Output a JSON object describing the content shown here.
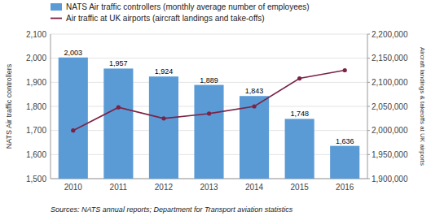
{
  "chart_data": {
    "type": "bar",
    "categories": [
      "2010",
      "2011",
      "2012",
      "2013",
      "2014",
      "2015",
      "2016"
    ],
    "series": [
      {
        "name": "NATS Air traffic controllers (monthly average number of employees)",
        "type": "bar",
        "color": "#5b9bd5",
        "values": [
          2003,
          1957,
          1924,
          1889,
          1843,
          1748,
          1636
        ],
        "value_labels": [
          "2,003",
          "1,957",
          "1,924",
          "1,889",
          "1,843",
          "1,748",
          "1,636"
        ]
      },
      {
        "name": "Air traffic at UK airports (aircraft landings and take-offs)",
        "type": "line",
        "color": "#7b2346",
        "marker": "circle",
        "axis": "y2",
        "values": [
          2000000,
          2048000,
          2025000,
          2035000,
          2050000,
          2108000,
          2125000
        ]
      }
    ],
    "y_label": "NATS Air traffic controllers",
    "y2_label": "Aircraft landings & takeoffs at UK airports",
    "ylim": [
      1500,
      2100
    ],
    "yticks": [
      {
        "value": 1500,
        "label": "1,500"
      },
      {
        "value": 1600,
        "label": "1,600"
      },
      {
        "value": 1700,
        "label": "1,700"
      },
      {
        "value": 1800,
        "label": "1,800"
      },
      {
        "value": 1900,
        "label": "1,900"
      },
      {
        "value": 2000,
        "label": "2,000"
      },
      {
        "value": 2100,
        "label": "2,100"
      }
    ],
    "y2lim": [
      1900000,
      2200000
    ],
    "y2ticks": [
      {
        "value": 1900000,
        "label": "1,900,000"
      },
      {
        "value": 1950000,
        "label": "1,950,000"
      },
      {
        "value": 2000000,
        "label": "2,000,000"
      },
      {
        "value": 2050000,
        "label": "2,050,000"
      },
      {
        "value": 2100000,
        "label": "2,100,000"
      },
      {
        "value": 2150000,
        "label": "2,150,000"
      },
      {
        "value": 2200000,
        "label": "2,200,000"
      }
    ],
    "grid": true,
    "data_labels": true,
    "legend": "upper left",
    "annotations": [
      "Sources: NATS annual reports; Department for Transport aviation statistics"
    ]
  }
}
